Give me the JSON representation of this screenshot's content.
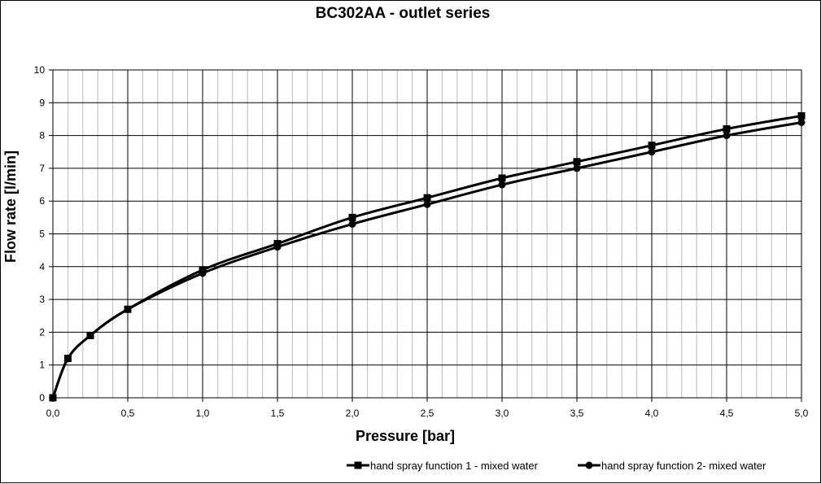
{
  "chart_data": {
    "type": "line",
    "title": "BC302AA - outlet series",
    "xlabel": "Pressure [bar]",
    "ylabel": "Flow rate [l/min]",
    "xlim": [
      0,
      5
    ],
    "ylim": [
      0,
      10
    ],
    "x_ticks": [
      "0,0",
      "0,5",
      "1,0",
      "1,5",
      "2,0",
      "2,5",
      "3,0",
      "3,5",
      "4,0",
      "4,5",
      "5,0"
    ],
    "y_ticks": [
      "0",
      "1",
      "2",
      "3",
      "4",
      "5",
      "6",
      "7",
      "8",
      "9",
      "10"
    ],
    "x_minor_step": 0.1,
    "grid": true,
    "legend_position": "bottom-right",
    "series": [
      {
        "name": "hand spray function 1 - mixed water",
        "marker": "square",
        "color": "#000000",
        "points": [
          [
            0,
            0
          ],
          [
            0.1,
            1.2
          ],
          [
            0.25,
            1.9
          ],
          [
            0.5,
            2.7
          ],
          [
            1.0,
            3.9
          ],
          [
            1.5,
            4.7
          ],
          [
            2.0,
            5.5
          ],
          [
            2.5,
            6.1
          ],
          [
            3.0,
            6.7
          ],
          [
            3.5,
            7.2
          ],
          [
            4.0,
            7.7
          ],
          [
            4.5,
            8.2
          ],
          [
            5.0,
            8.6
          ]
        ]
      },
      {
        "name": "hand spray function 2- mixed water",
        "marker": "circle",
        "color": "#000000",
        "points": [
          [
            0,
            0
          ],
          [
            0.1,
            1.2
          ],
          [
            0.25,
            1.9
          ],
          [
            0.5,
            2.7
          ],
          [
            1.0,
            3.8
          ],
          [
            1.5,
            4.6
          ],
          [
            2.0,
            5.3
          ],
          [
            2.5,
            5.9
          ],
          [
            3.0,
            6.5
          ],
          [
            3.5,
            7.0
          ],
          [
            4.0,
            7.5
          ],
          [
            4.5,
            8.0
          ],
          [
            5.0,
            8.4
          ]
        ]
      }
    ]
  }
}
